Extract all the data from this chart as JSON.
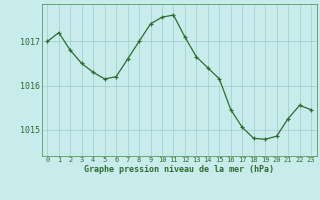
{
  "x": [
    0,
    1,
    2,
    3,
    4,
    5,
    6,
    7,
    8,
    9,
    10,
    11,
    12,
    13,
    14,
    15,
    16,
    17,
    18,
    19,
    20,
    21,
    22,
    23
  ],
  "y": [
    1017.0,
    1017.2,
    1016.8,
    1016.5,
    1016.3,
    1016.15,
    1016.2,
    1016.6,
    1017.0,
    1017.4,
    1017.55,
    1017.6,
    1017.1,
    1016.65,
    1016.4,
    1016.15,
    1015.45,
    1015.05,
    1014.8,
    1014.78,
    1014.85,
    1015.25,
    1015.55,
    1015.45
  ],
  "line_color": "#2d6e2d",
  "marker_color": "#2d6e2d",
  "bg_color": "#c8ecec",
  "grid_color": "#a0cccc",
  "title": "Graphe pression niveau de la mer (hPa)",
  "ylim": [
    1014.4,
    1017.85
  ],
  "yticks": [
    1015,
    1016,
    1017
  ],
  "xlim": [
    -0.5,
    23.5
  ],
  "xtick_labels": [
    "0",
    "1",
    "2",
    "3",
    "4",
    "5",
    "6",
    "7",
    "8",
    "9",
    "10",
    "11",
    "12",
    "13",
    "14",
    "15",
    "16",
    "17",
    "18",
    "19",
    "20",
    "21",
    "22",
    "23"
  ]
}
